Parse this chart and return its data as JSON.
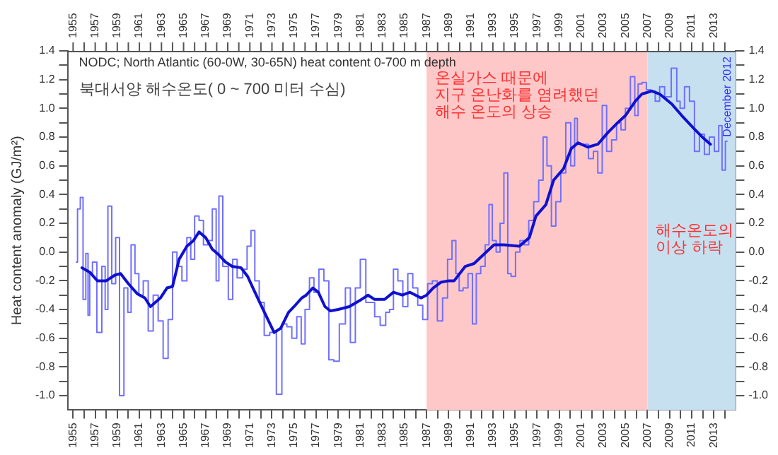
{
  "chart_data": {
    "type": "step",
    "title": "NODC; North Atlantic (60-0W, 30-65N) heat content 0-700 m depth",
    "subtitle": "북대서양 해수온도( 0 ~ 700 미터 수심)",
    "ylabel": "Heat content anomaly (GJ/m²)",
    "annotations": [
      "December 2012"
    ],
    "xlim": [
      1954.5,
      2015
    ],
    "ylim": [
      -1.1,
      1.4
    ],
    "y2lim": [
      -1.1,
      1.4
    ],
    "x2lim": [
      1954.5,
      2015
    ],
    "xticks": [
      1955,
      {
        "value": 1956,
        "label": null
      },
      1957,
      {
        "value": 1958,
        "label": null
      },
      1959,
      {
        "value": 1960,
        "label": null
      },
      1961,
      {
        "value": 1962,
        "label": null
      },
      1963,
      {
        "value": 1964,
        "label": null
      },
      1965,
      {
        "value": 1966,
        "label": null
      },
      1967,
      {
        "value": 1968,
        "label": null
      },
      1969,
      {
        "value": 1970,
        "label": null
      },
      1971,
      {
        "value": 1972,
        "label": null
      },
      1973,
      {
        "value": 1974,
        "label": null
      },
      1975,
      {
        "value": 1976,
        "label": null
      },
      1977,
      {
        "value": 1978,
        "label": null
      },
      1979,
      {
        "value": 1980,
        "label": null
      },
      1981,
      {
        "value": 1982,
        "label": null
      },
      1983,
      {
        "value": 1984,
        "label": null
      },
      1985,
      {
        "value": 1986,
        "label": null
      },
      1987,
      {
        "value": 1988,
        "label": null
      },
      1989,
      {
        "value": 1990,
        "label": null
      },
      1991,
      {
        "value": 1992,
        "label": null
      },
      1993,
      {
        "value": 1994,
        "label": null
      },
      1995,
      {
        "value": 1996,
        "label": null
      },
      1997,
      {
        "value": 1998,
        "label": null
      },
      1999,
      {
        "value": 2000,
        "label": null
      },
      2001,
      {
        "value": 2002,
        "label": null
      },
      2003,
      {
        "value": 2004,
        "label": null
      },
      2005,
      {
        "value": 2006,
        "label": null
      },
      2007,
      {
        "value": 2008,
        "label": null
      },
      2009,
      {
        "value": 2010,
        "label": null
      },
      2011,
      {
        "value": 2012,
        "label": null
      },
      2013,
      {
        "value": 2014,
        "label": null
      }
    ],
    "x2ticks": [
      1955,
      {
        "value": 1956,
        "label": null
      },
      1957,
      {
        "value": 1958,
        "label": null
      },
      1959,
      {
        "value": 1960,
        "label": null
      },
      1961,
      {
        "value": 1962,
        "label": null
      },
      1963,
      {
        "value": 1964,
        "label": null
      },
      1965,
      {
        "value": 1966,
        "label": null
      },
      1967,
      {
        "value": 1968,
        "label": null
      },
      1969,
      {
        "value": 1970,
        "label": null
      },
      1971,
      {
        "value": 1972,
        "label": null
      },
      1973,
      {
        "value": 1974,
        "label": null
      },
      1975,
      {
        "value": 1976,
        "label": null
      },
      1977,
      {
        "value": 1978,
        "label": null
      },
      1979,
      {
        "value": 1980,
        "label": null
      },
      1981,
      {
        "value": 1982,
        "label": null
      },
      1983,
      {
        "value": 1984,
        "label": null
      },
      1985,
      {
        "value": 1986,
        "label": null
      },
      1987,
      {
        "value": 1988,
        "label": null
      },
      1989,
      {
        "value": 1990,
        "label": null
      },
      1991,
      {
        "value": 1992,
        "label": null
      },
      1993,
      {
        "value": 1994,
        "label": null
      },
      1995,
      {
        "value": 1996,
        "label": null
      },
      1997,
      {
        "value": 1998,
        "label": null
      },
      1999,
      {
        "value": 2000,
        "label": null
      },
      2001,
      {
        "value": 2002,
        "label": null
      },
      2003,
      {
        "value": 2004,
        "label": null
      },
      2005,
      {
        "value": 2006,
        "label": null
      },
      2007,
      {
        "value": 2008,
        "label": null
      },
      2009,
      {
        "value": 2010,
        "label": null
      },
      2011,
      {
        "value": 2012,
        "label": null
      },
      2013,
      {
        "value": 2014,
        "label": null
      }
    ],
    "yticks": [
      {
        "value": -1,
        "label": "-1.0"
      },
      {
        "value": -0.9,
        "label": null
      },
      -0.8,
      {
        "value": -0.7,
        "label": null
      },
      -0.6,
      {
        "value": -0.5,
        "label": null
      },
      -0.4,
      {
        "value": -0.3,
        "label": null
      },
      -0.2,
      {
        "value": -0.1,
        "label": null
      },
      {
        "value": 0,
        "label": "0.0"
      },
      {
        "value": 0.1,
        "label": null
      },
      0.2,
      {
        "value": 0.3,
        "label": null
      },
      0.4,
      {
        "value": 0.5,
        "label": null
      },
      0.6,
      {
        "value": 0.7,
        "label": null
      },
      0.8,
      {
        "value": 0.9,
        "label": null
      },
      {
        "value": 1,
        "label": "1.0"
      },
      {
        "value": 1.1,
        "label": null
      },
      1.2,
      {
        "value": 1.3,
        "label": null
      },
      1.4
    ],
    "y2ticks": [
      {
        "value": -1,
        "label": "-1.0"
      },
      {
        "value": -0.9,
        "label": null
      },
      -0.8,
      {
        "value": -0.7,
        "label": null
      },
      -0.6,
      {
        "value": -0.5,
        "label": null
      },
      -0.4,
      {
        "value": -0.3,
        "label": null
      },
      -0.2,
      {
        "value": -0.1,
        "label": null
      },
      {
        "value": 0,
        "label": "0.0"
      },
      {
        "value": 0.1,
        "label": null
      },
      0.2,
      {
        "value": 0.3,
        "label": null
      },
      0.4,
      {
        "value": 0.5,
        "label": null
      },
      0.6,
      {
        "value": 0.7,
        "label": null
      },
      0.8,
      {
        "value": 0.9,
        "label": null
      },
      {
        "value": 1,
        "label": "1.0"
      },
      {
        "value": 1.1,
        "label": null
      },
      1.2,
      {
        "value": 1.3,
        "label": null
      },
      1.4
    ],
    "bands": [
      {
        "axis": "x",
        "from": 1987,
        "to": 2007,
        "label": "온실가스 때문에\n지구 온난화를 염려했던\n해수 온도의 상승",
        "color": "#ffc8c8"
      },
      {
        "axis": "x",
        "from": 2007,
        "to": 2015,
        "label": "해수온도의\n이상 하락",
        "color": "#c6e0f0"
      }
    ],
    "grid": false,
    "legend": false,
    "marker": "none",
    "line_style": "solid",
    "series": [
      {
        "type": "step",
        "color": "#7070ff",
        "x": [
          1955.3,
          1955.5,
          1955.8,
          1956.0,
          1956.3,
          1956.4,
          1956.6,
          1956.9,
          1957.4,
          1957.8,
          1958.0,
          1958.3,
          1958.7,
          1959.0,
          1959.4,
          1959.8,
          1960.1,
          1960.4,
          1960.8,
          1961.1,
          1961.6,
          1962.0,
          1962.5,
          1962.9,
          1963.4,
          1963.8,
          1964.2,
          1964.6,
          1965.1,
          1965.5,
          1965.8,
          1966.2,
          1966.6,
          1967.0,
          1967.4,
          1967.8,
          1968.1,
          1968.3,
          1968.8,
          1969.3,
          1969.6,
          1970.1,
          1970.6,
          1970.9,
          1971.3,
          1971.6,
          1972.1,
          1972.5,
          1973.1,
          1973.7,
          1974.1,
          1974.6,
          1975.0,
          1975.5,
          1975.8,
          1976.2,
          1976.6,
          1977.0,
          1977.5,
          1977.9,
          1978.4,
          1978.8,
          1979.4,
          1979.9,
          1980.3,
          1980.8,
          1981.2,
          1981.8,
          1982.1,
          1982.5,
          1983.1,
          1983.5,
          1983.8,
          1984.2,
          1984.6,
          1985.1,
          1985.5,
          1986.0,
          1986.4,
          1986.9,
          1987.3,
          1987.75,
          1988.2,
          1988.7,
          1989.1,
          1989.5,
          1989.8,
          1990.1,
          1990.5,
          1991.0,
          1991.3,
          1991.7,
          1992.1,
          1992.5,
          1992.8,
          1993.1,
          1993.5,
          1993.8,
          1994.2,
          1994.5,
          1994.8,
          1995.3,
          1995.6,
          1996.0,
          1996.5,
          1996.9,
          1997.4,
          1997.7,
          1998.1,
          1998.5,
          1998.9,
          1999.4,
          1999.8,
          2000.3,
          2000.5,
          2000.8,
          2001.4,
          2001.9,
          2002.3,
          2002.7,
          2003.1,
          2003.5,
          2004.0,
          2004.4,
          2004.8,
          2005.2,
          2005.7,
          2006.0,
          2006.3,
          2006.7,
          2007.1,
          2007.5,
          2007.9,
          2008.3,
          2008.8,
          2009.5,
          2009.8,
          2010.1,
          2010.6,
          2011.0,
          2011.5,
          2011.9,
          2012.4,
          2012.8,
          2013.3,
          2013.6,
          2013.9,
          2014.2
        ],
        "values": [
          -0.07,
          0.3,
          0.38,
          -0.33,
          -0.01,
          -0.44,
          -0.15,
          -0.07,
          -0.56,
          -0.1,
          -0.4,
          0.32,
          -0.22,
          0.1,
          -1.0,
          -0.25,
          -0.42,
          0.05,
          -0.15,
          -0.3,
          -0.2,
          -0.55,
          -0.3,
          -0.48,
          -0.74,
          -0.47,
          0.0,
          -0.1,
          -0.2,
          0.1,
          -0.05,
          0.25,
          0.22,
          0.05,
          0.08,
          0.3,
          -0.2,
          0.39,
          -0.1,
          -0.33,
          -0.05,
          -0.18,
          -0.12,
          0.04,
          0.15,
          -0.2,
          -0.35,
          -0.58,
          -0.56,
          -0.99,
          -0.5,
          -0.52,
          -0.6,
          -0.45,
          -0.64,
          -0.4,
          -0.18,
          -0.28,
          -0.12,
          -0.2,
          -0.75,
          -0.76,
          -0.5,
          -0.25,
          -0.63,
          -0.25,
          -0.05,
          -0.35,
          -0.35,
          -0.45,
          -0.51,
          -0.42,
          -0.4,
          -0.12,
          -0.2,
          -0.38,
          -0.15,
          -0.25,
          -0.37,
          -0.47,
          -0.22,
          -0.2,
          -0.48,
          -0.32,
          -0.05,
          0.08,
          -0.15,
          -0.27,
          -0.25,
          -0.15,
          -0.5,
          -0.15,
          -0.1,
          0.05,
          0.33,
          0.08,
          0.0,
          0.2,
          0.55,
          -0.15,
          -0.17,
          0.0,
          0.08,
          0.05,
          0.22,
          0.35,
          0.5,
          0.8,
          0.6,
          0.18,
          0.35,
          0.55,
          0.9,
          0.6,
          0.93,
          0.75,
          0.75,
          0.65,
          0.7,
          0.55,
          1.02,
          0.7,
          0.78,
          0.9,
          0.85,
          1.0,
          1.22,
          0.95,
          1.17,
          1.18,
          1.13,
          1.12,
          1.05,
          1.15,
          1.08,
          1.28,
          1.05,
          1.0,
          1.15,
          1.05,
          0.7,
          0.82,
          0.68,
          0.8,
          0.7,
          0.88,
          0.57,
          0.77
        ]
      },
      {
        "type": "line",
        "color": "#1010d0",
        "x": [
          1955.8,
          1956.5,
          1957.2,
          1958.0,
          1958.8,
          1959.3,
          1960.0,
          1960.8,
          1961.5,
          1962.0,
          1962.9,
          1963.5,
          1964.0,
          1964.6,
          1965.3,
          1965.9,
          1966.4,
          1967.0,
          1967.6,
          1968.2,
          1968.8,
          1969.4,
          1970.2,
          1970.8,
          1971.4,
          1972.2,
          1973.2,
          1973.8,
          1974.5,
          1975.0,
          1975.7,
          1976.1,
          1976.7,
          1977.2,
          1977.8,
          1978.3,
          1979.0,
          1980.0,
          1980.9,
          1981.7,
          1982.3,
          1983.2,
          1984.0,
          1984.8,
          1985.5,
          1986.5,
          1987.0,
          1987.6,
          1988.3,
          1989.0,
          1989.5,
          1990.5,
          1991.3,
          1992.4,
          1993.1,
          1994.0,
          1995.4,
          1996.3,
          1996.9,
          1997.8,
          1998.5,
          1999.4,
          2000.1,
          2000.7,
          2001.6,
          2002.5,
          2003.4,
          2004.3,
          2005.0,
          2005.9,
          2006.5,
          2007.4,
          2008.1,
          2009.2,
          2010.1,
          2011.2,
          2012.1,
          2012.7
        ],
        "values": [
          -0.11,
          -0.14,
          -0.2,
          -0.2,
          -0.16,
          -0.15,
          -0.22,
          -0.29,
          -0.32,
          -0.38,
          -0.32,
          -0.25,
          -0.24,
          -0.05,
          0.04,
          0.08,
          0.14,
          0.1,
          0.02,
          -0.02,
          -0.07,
          -0.1,
          -0.11,
          -0.17,
          -0.27,
          -0.4,
          -0.56,
          -0.53,
          -0.42,
          -0.38,
          -0.32,
          -0.3,
          -0.25,
          -0.28,
          -0.38,
          -0.41,
          -0.4,
          -0.38,
          -0.34,
          -0.3,
          -0.33,
          -0.33,
          -0.28,
          -0.3,
          -0.28,
          -0.32,
          -0.3,
          -0.25,
          -0.21,
          -0.2,
          -0.2,
          -0.1,
          -0.08,
          0.0,
          0.05,
          0.05,
          0.04,
          0.1,
          0.25,
          0.33,
          0.5,
          0.58,
          0.72,
          0.76,
          0.73,
          0.75,
          0.83,
          0.9,
          0.95,
          1.05,
          1.1,
          1.12,
          1.1,
          1.03,
          0.95,
          0.86,
          0.79,
          0.75
        ]
      }
    ]
  }
}
